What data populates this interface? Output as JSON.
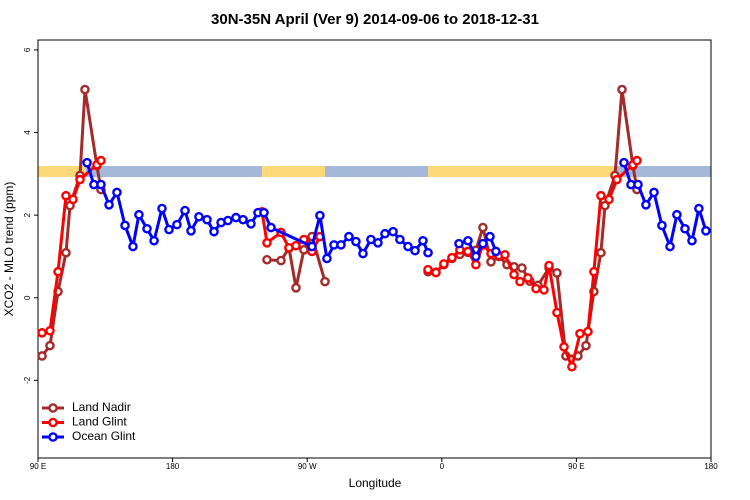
{
  "chart_data": {
    "type": "line",
    "title": "30N-35N April (Ver 9)   2014-09-06 to 2018-12-31",
    "x_label": "Longitude",
    "y_label": "XCO2 - MLO trend (ppm)",
    "xlim": [
      90,
      540
    ],
    "xticks": [
      {
        "value": 90,
        "label": "90 E"
      },
      180,
      {
        "value": 270,
        "label": "90 W"
      },
      {
        "value": 360,
        "label": "0"
      },
      {
        "value": 450,
        "label": "90 E"
      },
      {
        "value": 540,
        "label": "180"
      }
    ],
    "ylim": [
      -3.88,
      6.24
    ],
    "yticks": [
      -2,
      0,
      2,
      4,
      6
    ],
    "legend": "bottom-left",
    "series": [
      {
        "name": "Land Nadir",
        "color": "#a52a2a",
        "x": [
          92.7,
          98.0,
          103.4,
          108.7,
          111.4,
          118.1,
          121.4,
          129.4,
          132.1,
          null,
          243.1,
          252.5,
          257.8,
          262.5,
          267.8,
          273.2,
          281.9,
          null,
          350.8,
          356.1,
          361.4,
          366.8,
          372.1,
          377.5,
          382.8,
          387.5,
          392.9,
          398.2,
          403.6,
          408.3,
          413.6,
          418.9,
          424.3,
          431.7,
          437.0,
          443.0,
          451.0,
          456.4,
          461.7,
          466.4,
          469.1,
          475.8,
          480.5,
          487.8,
          490.5
        ],
        "values": [
          -1.41,
          -1.16,
          0.15,
          1.09,
          2.23,
          2.96,
          5.04,
          3.2,
          2.62,
          null,
          0.92,
          0.9,
          1.2,
          0.24,
          1.16,
          1.48,
          0.39,
          null,
          0.63,
          0.62,
          0.8,
          0.95,
          1.05,
          1.1,
          1.15,
          1.7,
          0.87,
          1.0,
          0.8,
          0.75,
          0.72,
          0.4,
          0.3,
          0.72,
          0.6,
          -1.41,
          -1.41,
          -1.16,
          0.15,
          1.09,
          2.23,
          2.96,
          5.04,
          3.2,
          2.62
        ]
      },
      {
        "name": "Land Glint",
        "color": "#ff0000",
        "x": [
          92.7,
          98.0,
          103.4,
          108.7,
          113.4,
          118.1,
          129.4,
          132.1,
          null,
          239.8,
          243.1,
          252.5,
          257.8,
          262.5,
          267.8,
          273.2,
          278.5,
          null,
          350.8,
          356.1,
          361.4,
          366.8,
          372.1,
          377.5,
          382.8,
          387.5,
          392.9,
          398.2,
          402.2,
          408.3,
          412.3,
          417.6,
          423.0,
          428.3,
          431.7,
          437.0,
          441.7,
          447.0,
          452.4,
          457.7,
          461.7,
          466.4,
          471.8,
          477.1,
          487.8,
          490.5
        ],
        "values": [
          -0.85,
          -0.8,
          0.63,
          2.47,
          2.38,
          2.86,
          3.22,
          3.32,
          null,
          2.08,
          1.33,
          1.58,
          1.21,
          1.26,
          1.41,
          1.12,
          1.48,
          null,
          0.68,
          0.61,
          0.82,
          0.97,
          1.16,
          1.12,
          0.8,
          1.28,
          1.07,
          1.02,
          1.04,
          0.56,
          0.39,
          0.48,
          0.22,
          0.19,
          0.78,
          -0.36,
          -1.19,
          -1.67,
          -0.87,
          -0.82,
          0.63,
          2.47,
          2.38,
          2.86,
          3.22,
          3.32
        ]
      },
      {
        "name": "Ocean Glint",
        "color": "#0000ff",
        "x": [
          122.8,
          127.4,
          132.1,
          137.5,
          142.8,
          148.2,
          153.5,
          157.5,
          162.9,
          167.6,
          172.9,
          177.6,
          182.9,
          188.3,
          192.3,
          197.6,
          203.0,
          207.7,
          212.4,
          217.0,
          222.4,
          227.1,
          232.4,
          237.1,
          241.1,
          245.8,
          273.2,
          278.5,
          283.2,
          287.9,
          292.6,
          297.9,
          302.6,
          307.3,
          312.6,
          317.3,
          322.0,
          327.4,
          332.0,
          337.4,
          342.1,
          347.4,
          350.8,
          null,
          371.5,
          377.5,
          382.8,
          387.5,
          392.2,
          396.2,
          null,
          481.8,
          486.5,
          491.2,
          496.5,
          501.9,
          507.2,
          512.6,
          517.2,
          522.6,
          527.3,
          531.9,
          536.6
        ],
        "values": [
          3.27,
          2.74,
          2.74,
          2.25,
          2.55,
          1.75,
          1.24,
          2.01,
          1.67,
          1.38,
          2.16,
          1.65,
          1.77,
          2.11,
          1.62,
          1.96,
          1.89,
          1.6,
          1.82,
          1.87,
          1.94,
          1.89,
          1.79,
          2.06,
          2.06,
          1.7,
          1.24,
          1.99,
          0.95,
          1.28,
          1.28,
          1.48,
          1.36,
          1.07,
          1.41,
          1.33,
          1.55,
          1.6,
          1.41,
          1.24,
          1.14,
          1.38,
          1.09,
          null,
          1.31,
          1.38,
          1.0,
          1.31,
          1.48,
          1.12,
          null,
          3.27,
          2.74,
          2.74,
          2.25,
          2.55,
          1.75,
          1.24,
          2.01,
          1.67,
          1.38,
          2.16,
          1.62
        ]
      }
    ]
  }
}
